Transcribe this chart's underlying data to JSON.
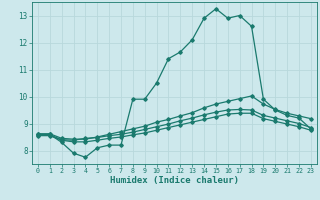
{
  "title": "",
  "xlabel": "Humidex (Indice chaleur)",
  "ylabel": "",
  "bg_color": "#cde8ec",
  "grid_color": "#b8d8dc",
  "line_color": "#1a7a6e",
  "xlim": [
    -0.5,
    23.5
  ],
  "ylim": [
    7.5,
    13.5
  ],
  "xticks": [
    0,
    1,
    2,
    3,
    4,
    5,
    6,
    7,
    8,
    9,
    10,
    11,
    12,
    13,
    14,
    15,
    16,
    17,
    18,
    19,
    20,
    21,
    22,
    23
  ],
  "yticks": [
    8,
    9,
    10,
    11,
    12,
    13
  ],
  "line1_x": [
    0,
    1,
    2,
    3,
    4,
    5,
    6,
    7,
    8,
    9,
    10,
    11,
    12,
    13,
    14,
    15,
    16,
    17,
    18,
    19,
    20,
    21,
    22,
    23
  ],
  "line1_y": [
    8.6,
    8.6,
    8.3,
    7.9,
    7.75,
    8.1,
    8.2,
    8.2,
    9.9,
    9.9,
    10.5,
    11.4,
    11.65,
    12.1,
    12.9,
    13.25,
    12.9,
    13.0,
    12.6,
    9.9,
    9.5,
    9.3,
    9.2,
    8.8
  ],
  "line2_x": [
    0,
    1,
    2,
    3,
    4,
    5,
    6,
    7,
    8,
    9,
    10,
    11,
    12,
    13,
    14,
    15,
    16,
    17,
    18,
    19,
    20,
    21,
    22,
    23
  ],
  "line2_y": [
    8.62,
    8.62,
    8.45,
    8.42,
    8.42,
    8.5,
    8.6,
    8.7,
    8.8,
    8.9,
    9.05,
    9.15,
    9.28,
    9.4,
    9.58,
    9.72,
    9.82,
    9.92,
    10.02,
    9.72,
    9.52,
    9.38,
    9.28,
    9.18
  ],
  "line3_x": [
    0,
    1,
    2,
    3,
    4,
    5,
    6,
    7,
    8,
    9,
    10,
    11,
    12,
    13,
    14,
    15,
    16,
    17,
    18,
    19,
    20,
    21,
    22,
    23
  ],
  "line3_y": [
    8.58,
    8.58,
    8.4,
    8.38,
    8.45,
    8.48,
    8.55,
    8.6,
    8.68,
    8.78,
    8.88,
    8.98,
    9.1,
    9.2,
    9.32,
    9.42,
    9.5,
    9.52,
    9.5,
    9.3,
    9.2,
    9.1,
    9.0,
    8.85
  ],
  "line4_x": [
    0,
    1,
    2,
    3,
    4,
    5,
    6,
    7,
    8,
    9,
    10,
    11,
    12,
    13,
    14,
    15,
    16,
    17,
    18,
    19,
    20,
    21,
    22,
    23
  ],
  "line4_y": [
    8.55,
    8.55,
    8.38,
    8.32,
    8.32,
    8.38,
    8.45,
    8.5,
    8.58,
    8.65,
    8.75,
    8.85,
    8.95,
    9.05,
    9.15,
    9.25,
    9.35,
    9.38,
    9.38,
    9.18,
    9.08,
    8.98,
    8.88,
    8.75
  ]
}
